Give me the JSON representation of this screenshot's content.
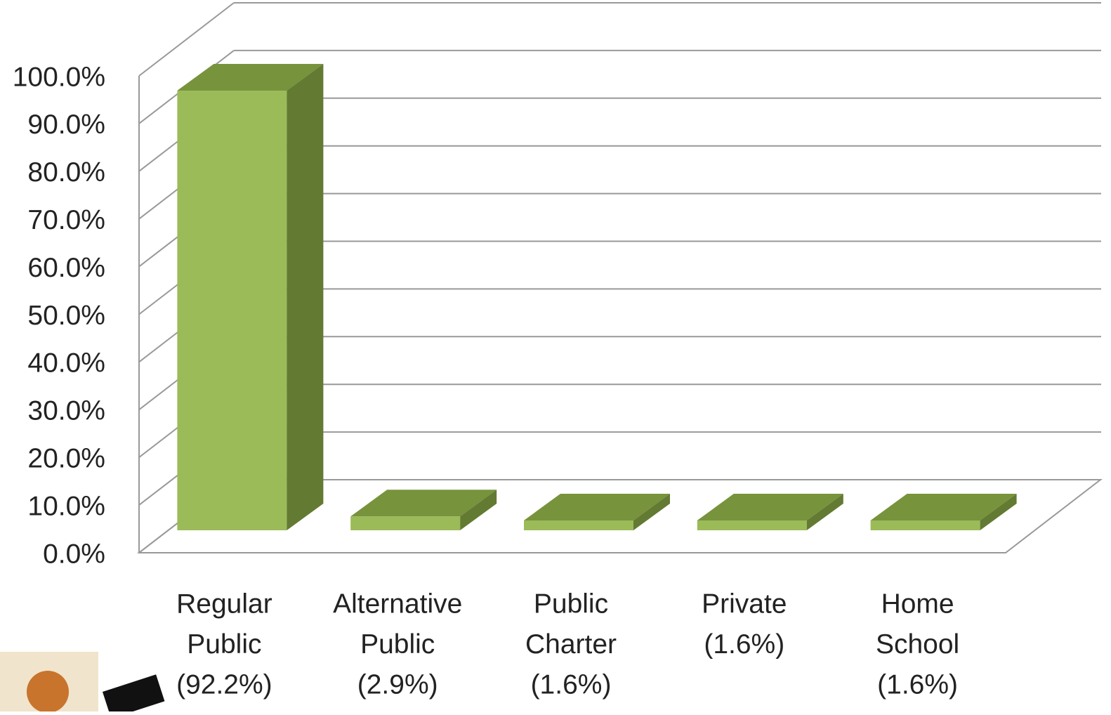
{
  "chart_data": {
    "type": "bar3d",
    "categories": [
      [
        "Regular",
        "Public",
        "(92.2%)"
      ],
      [
        "Alternative",
        "Public",
        "(2.9%)"
      ],
      [
        "Public",
        "Charter",
        "(1.6%)"
      ],
      [
        "Private",
        "(1.6%)"
      ],
      [
        "Home",
        "School",
        "(1.6%)"
      ]
    ],
    "values": [
      92.2,
      2.9,
      1.6,
      1.6,
      1.6
    ],
    "color": "#9bbb59",
    "ylim": [
      0,
      100
    ],
    "yticks": [
      {
        "value": 0,
        "label": "0.0%"
      },
      {
        "value": 10,
        "label": "10.0%"
      },
      {
        "value": 20,
        "label": "20.0%"
      },
      {
        "value": 30,
        "label": "30.0%"
      },
      {
        "value": 40,
        "label": "40.0%"
      },
      {
        "value": 50,
        "label": "50.0%"
      },
      {
        "value": 60,
        "label": "60.0%"
      },
      {
        "value": 70,
        "label": "70.0%"
      },
      {
        "value": 80,
        "label": "80.0%"
      },
      {
        "value": 90,
        "label": "90.0%"
      },
      {
        "value": 100,
        "label": "100.0%"
      }
    ],
    "grid": true
  }
}
